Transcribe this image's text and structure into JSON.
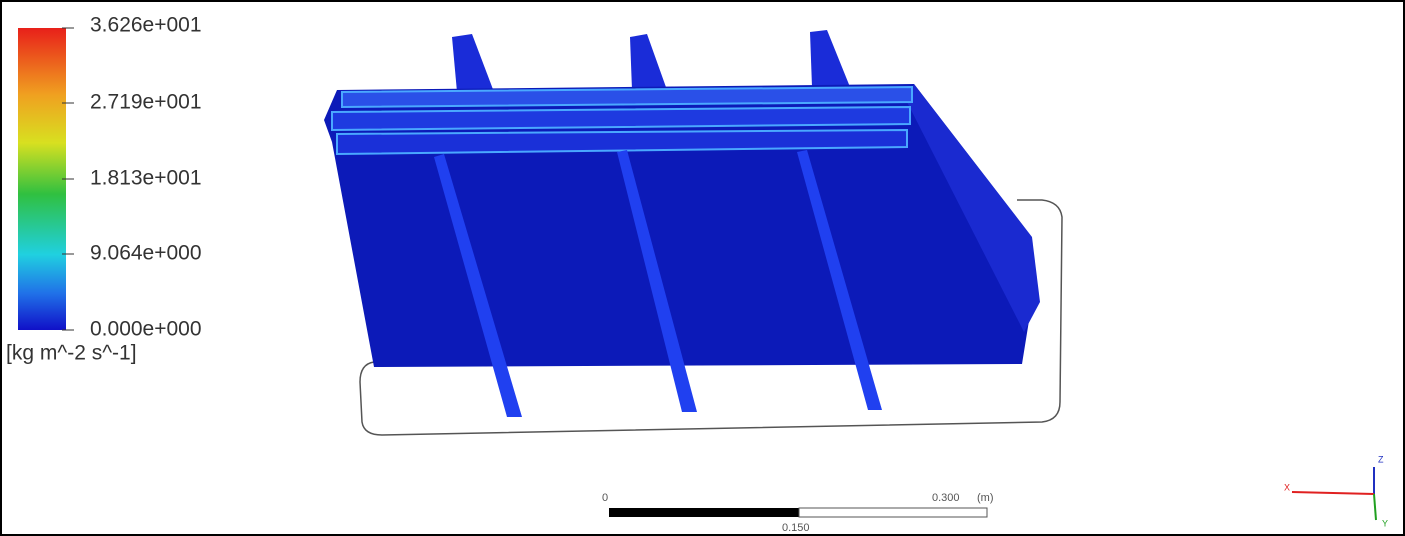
{
  "legend": {
    "ticks": [
      "3.626e+001",
      "2.719e+001",
      "1.813e+001",
      "9.064e+000",
      "0.000e+000"
    ],
    "unit": "[kg m^-2 s^-1]"
  },
  "scale_bar": {
    "start": "0",
    "end": "0.300",
    "unit": "(m)",
    "mid": "0.150"
  },
  "axes": {
    "z": "Z",
    "x": "X",
    "y": "Y"
  }
}
